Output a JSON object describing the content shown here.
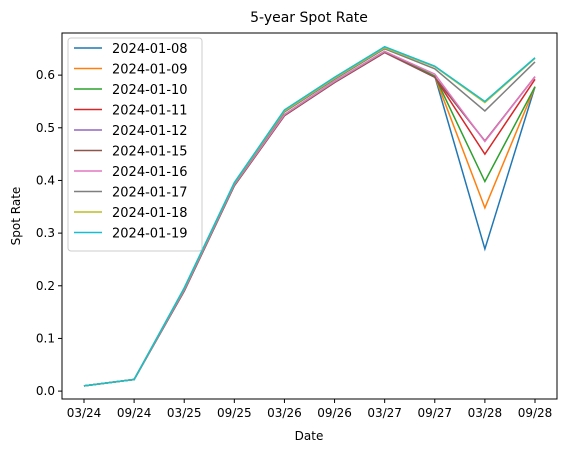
{
  "chart_data": {
    "type": "line",
    "title": "5-year Spot Rate",
    "xlabel": "Date",
    "ylabel": "Spot Rate",
    "categories": [
      "03/24",
      "09/24",
      "03/25",
      "09/25",
      "03/26",
      "09/26",
      "03/27",
      "09/27",
      "03/28",
      "09/28"
    ],
    "ylim": [
      -0.015,
      0.68
    ],
    "yticks": [
      0.0,
      0.1,
      0.2,
      0.3,
      0.4,
      0.5,
      0.6
    ],
    "ytick_labels": [
      "0.0",
      "0.1",
      "0.2",
      "0.3",
      "0.4",
      "0.5",
      "0.6"
    ],
    "grid": false,
    "legend_position": "top-left",
    "series": [
      {
        "name": "2024-01-08",
        "color": "#1f77b4",
        "values": [
          0.01,
          0.022,
          0.192,
          0.392,
          0.525,
          0.588,
          0.645,
          0.598,
          0.27,
          0.578
        ]
      },
      {
        "name": "2024-01-09",
        "color": "#ff7f0e",
        "values": [
          0.01,
          0.022,
          0.192,
          0.392,
          0.525,
          0.588,
          0.645,
          0.598,
          0.348,
          0.578
        ]
      },
      {
        "name": "2024-01-10",
        "color": "#2ca02c",
        "values": [
          0.01,
          0.022,
          0.192,
          0.392,
          0.525,
          0.588,
          0.645,
          0.598,
          0.398,
          0.578
        ]
      },
      {
        "name": "2024-01-11",
        "color": "#d62728",
        "values": [
          0.01,
          0.022,
          0.19,
          0.39,
          0.523,
          0.586,
          0.643,
          0.596,
          0.45,
          0.592
        ]
      },
      {
        "name": "2024-01-12",
        "color": "#9467bd",
        "values": [
          0.01,
          0.022,
          0.19,
          0.39,
          0.523,
          0.586,
          0.643,
          0.596,
          0.475,
          0.597
        ]
      },
      {
        "name": "2024-01-15",
        "color": "#8c564b",
        "values": [
          0.01,
          0.022,
          0.19,
          0.39,
          0.523,
          0.586,
          0.643,
          0.596,
          0.475,
          0.597
        ]
      },
      {
        "name": "2024-01-16",
        "color": "#e377c2",
        "values": [
          0.01,
          0.022,
          0.192,
          0.392,
          0.525,
          0.588,
          0.645,
          0.602,
          0.474,
          0.597
        ]
      },
      {
        "name": "2024-01-17",
        "color": "#7f7f7f",
        "values": [
          0.01,
          0.022,
          0.194,
          0.394,
          0.53,
          0.592,
          0.65,
          0.612,
          0.532,
          0.625
        ]
      },
      {
        "name": "2024-01-18",
        "color": "#bcbd22",
        "values": [
          0.01,
          0.022,
          0.195,
          0.395,
          0.532,
          0.594,
          0.652,
          0.616,
          0.548,
          0.632
        ]
      },
      {
        "name": "2024-01-19",
        "color": "#17becf",
        "values": [
          0.01,
          0.022,
          0.196,
          0.396,
          0.534,
          0.596,
          0.654,
          0.617,
          0.55,
          0.633
        ]
      }
    ]
  }
}
